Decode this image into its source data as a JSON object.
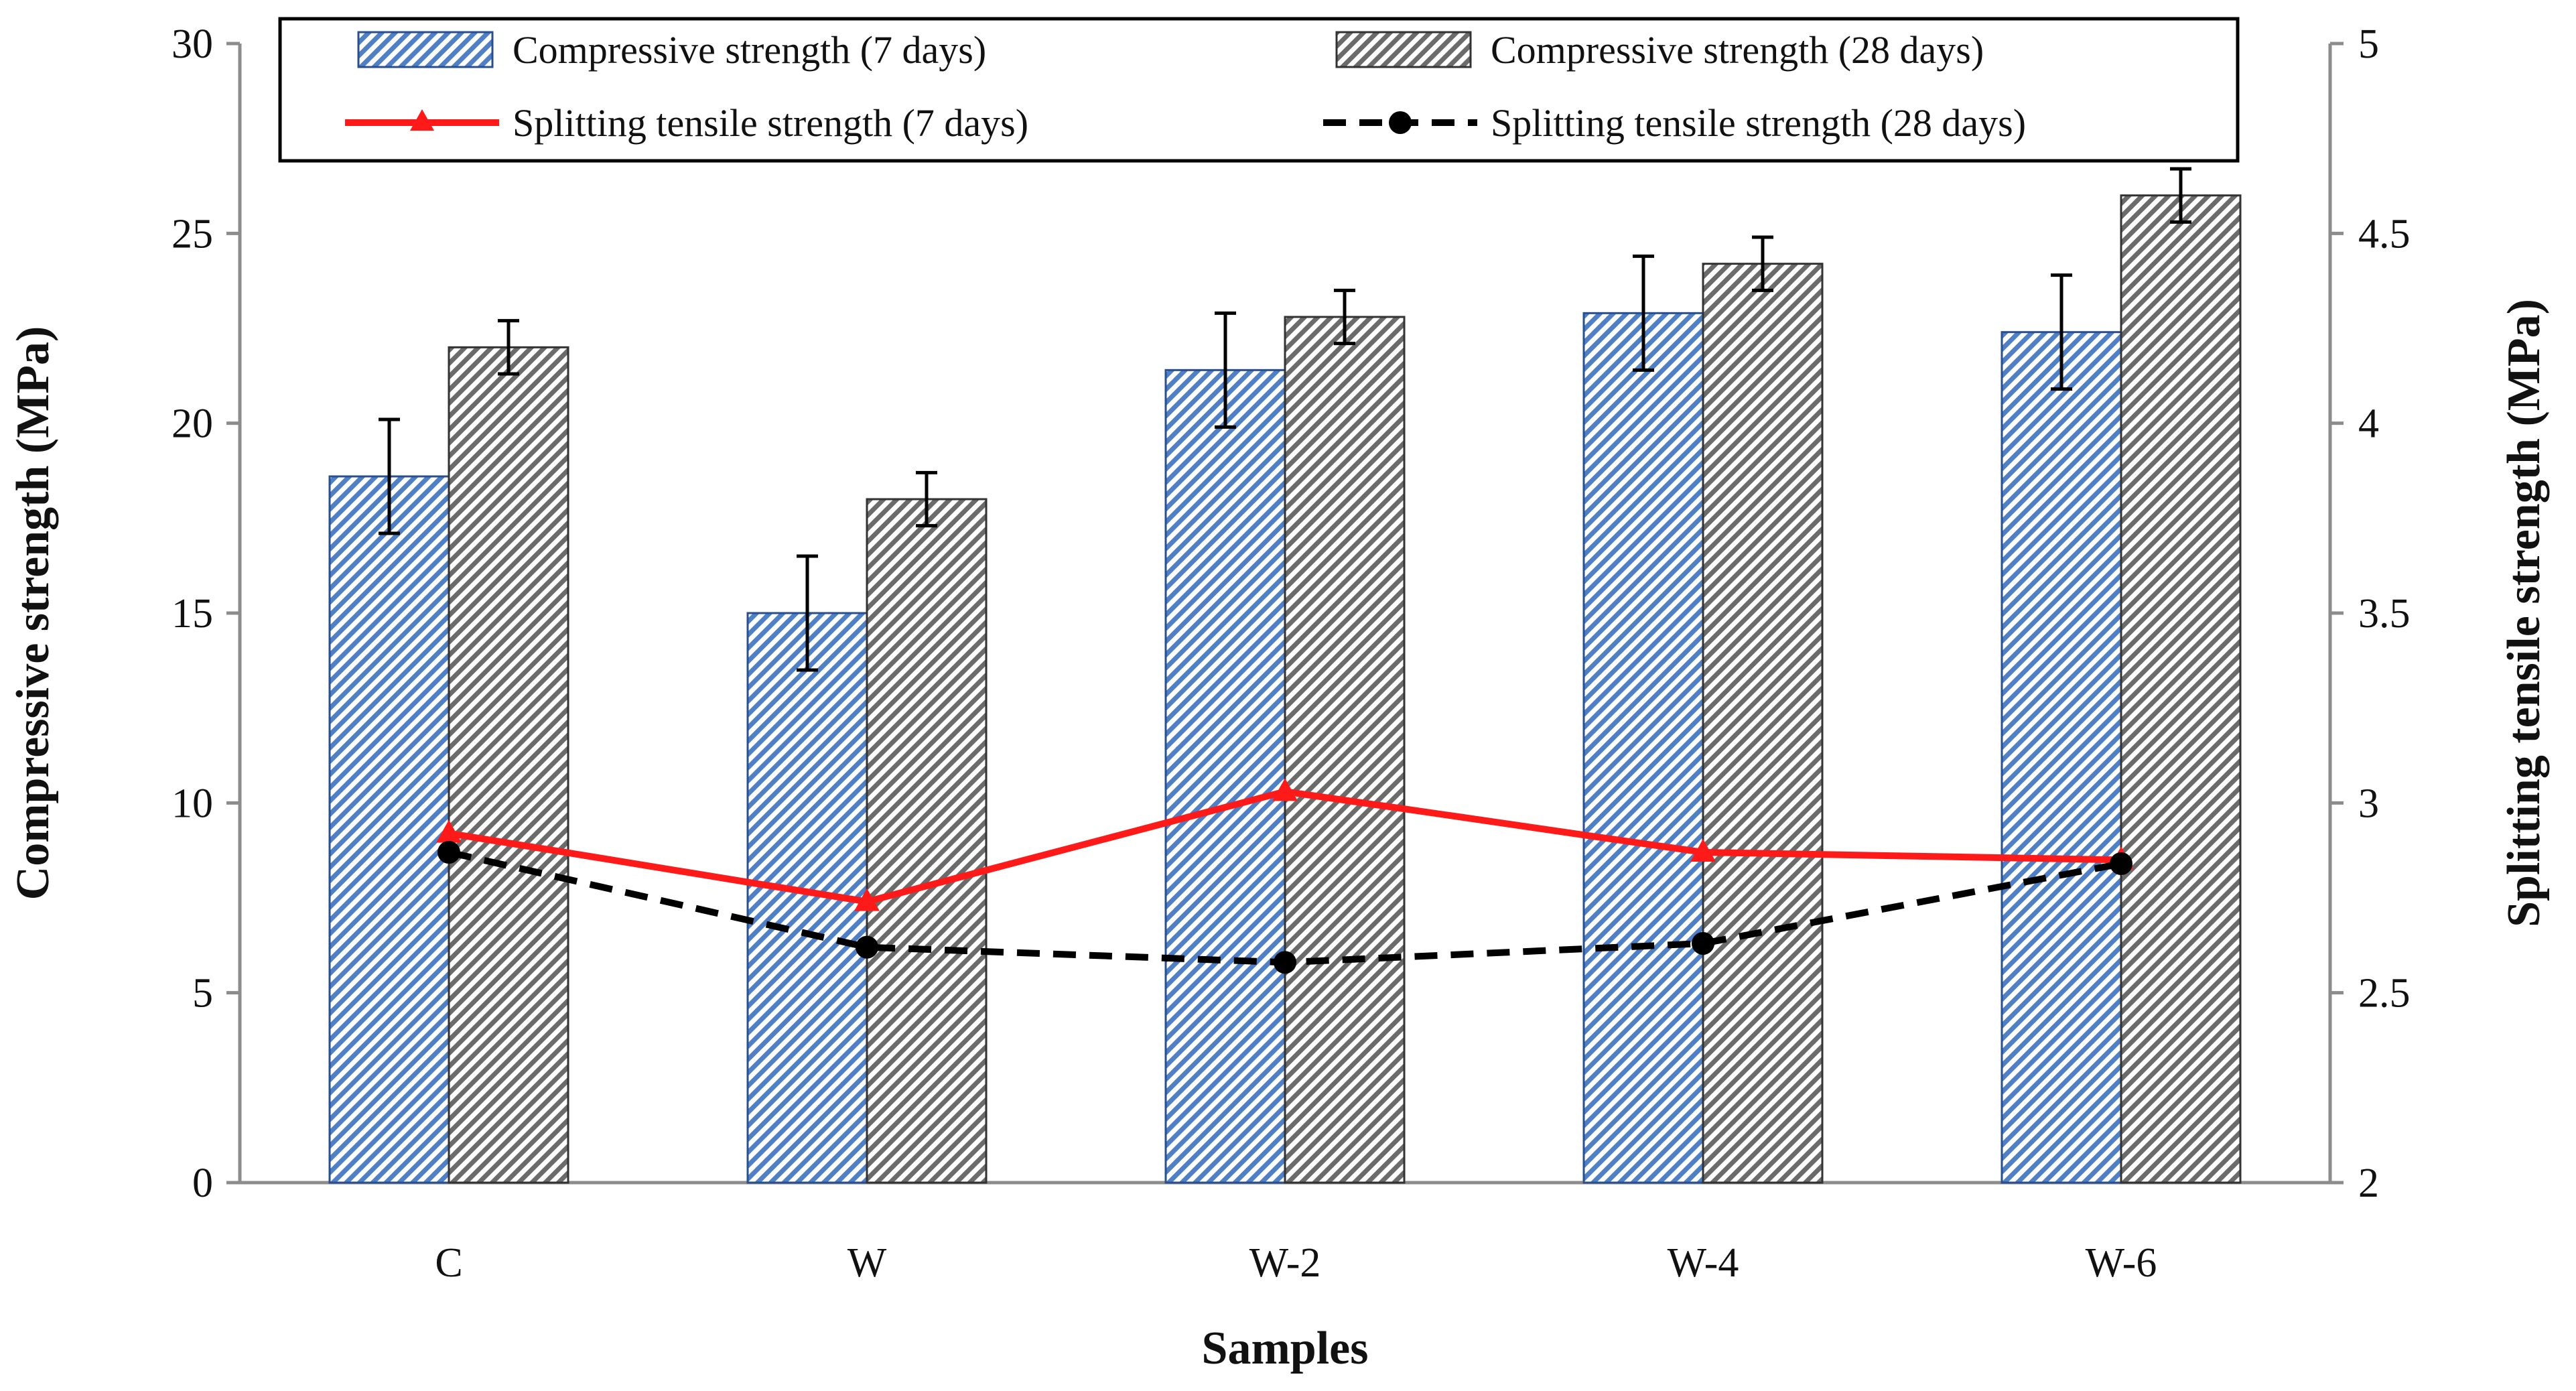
{
  "chart_data": {
    "type": "bar",
    "title": "",
    "xlabel": "Samples",
    "ylabel": "Compressive strength (MPa)",
    "y2label": "Splitting tensile strength (MPa)",
    "categories": [
      "C",
      "W",
      "W-2",
      "W-4",
      "W-6"
    ],
    "ylim": [
      0,
      30
    ],
    "yticks": [
      0,
      5,
      10,
      15,
      20,
      25,
      30
    ],
    "y2lim": [
      2,
      5
    ],
    "y2ticks": [
      "2",
      "2.5",
      "3",
      "3.5",
      "4",
      "4.5",
      "5"
    ],
    "bar_series": [
      {
        "name": "Compressive strength (7 days)",
        "values": [
          18.6,
          15.0,
          21.4,
          22.9,
          22.4
        ],
        "errors": [
          1.5,
          1.5,
          1.5,
          1.5,
          1.5
        ],
        "color": "#4f7fc4",
        "pattern": "blue-diagonal"
      },
      {
        "name": "Compressive strength (28 days)",
        "values": [
          22.0,
          18.0,
          22.8,
          24.2,
          26.0
        ],
        "errors": [
          0.7,
          0.7,
          0.7,
          0.7,
          0.7
        ],
        "color": "#6b6b6b",
        "pattern": "gray-diagonal"
      }
    ],
    "line_series": [
      {
        "name": "Splitting tensile strength (7 days)",
        "axis": "right",
        "values": [
          2.92,
          2.74,
          3.03,
          2.87,
          2.85
        ],
        "color": "#ff1a1a",
        "marker": "triangle",
        "dash": "solid"
      },
      {
        "name": "Splitting tensile strength (28 days)",
        "axis": "right",
        "values": [
          2.87,
          2.62,
          2.58,
          2.63,
          2.84
        ],
        "color": "#000000",
        "marker": "circle",
        "dash": "dashed"
      }
    ],
    "legend": {
      "placement": "top",
      "entries": [
        "Compressive strength (7 days)",
        "Compressive strength (28 days)",
        "Splitting tensile strength (7 days)",
        "Splitting tensile strength (28 days)"
      ]
    }
  }
}
